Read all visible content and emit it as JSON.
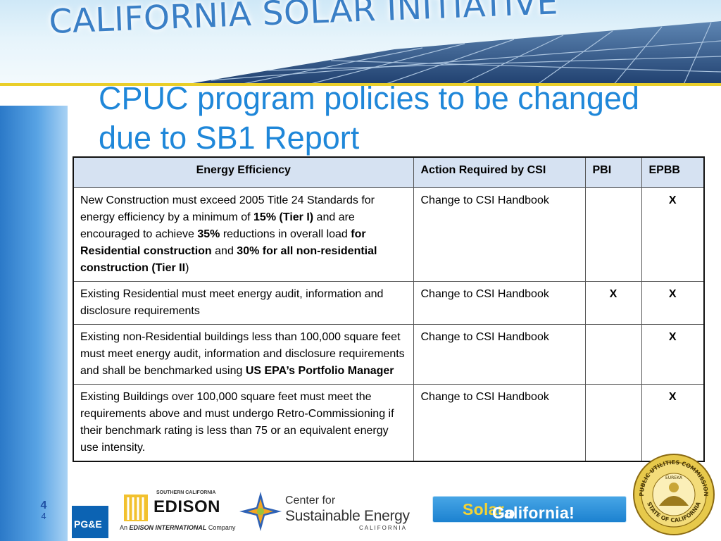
{
  "banner": {
    "title": "CALIFORNIA SOLAR INITIATIVE"
  },
  "slide": {
    "title_line1": "CPUC program policies to be changed",
    "title_line2": "due to SB1 Report"
  },
  "table": {
    "headers": [
      "Energy Efficiency",
      "Action Required by CSI",
      "PBI",
      "EPBB"
    ],
    "rows": [
      {
        "segments": [
          {
            "text": "New Construction must exceed 2005 Title 24 Standards for energy efficiency by a minimum of ",
            "bold": false
          },
          {
            "text": "15% (Tier I)",
            "bold": true
          },
          {
            "text": " and are encouraged to achieve ",
            "bold": false
          },
          {
            "text": "35%",
            "bold": true
          },
          {
            "text": " reductions in overall load ",
            "bold": false
          },
          {
            "text": "for Residential construction",
            "bold": true
          },
          {
            "text": " and ",
            "bold": false
          },
          {
            "text": "30% for all non-residential construction (Tier II",
            "bold": true
          },
          {
            "text": ")",
            "bold": false
          }
        ],
        "action": "Change to CSI Handbook",
        "pbi": "",
        "epbb": "X"
      },
      {
        "segments": [
          {
            "text": "Existing Residential must meet energy audit, information and disclosure requirements",
            "bold": false
          }
        ],
        "action": "Change to CSI Handbook",
        "pbi": "X",
        "epbb": "X"
      },
      {
        "segments": [
          {
            "text": "Existing non-Residential buildings less than 100,000 square feet must meet energy audit, information and disclosure requirements and shall be benchmarked using ",
            "bold": false
          },
          {
            "text": "US EPA’s Portfolio Manager",
            "bold": true
          }
        ],
        "action": "Change to CSI Handbook",
        "pbi": "",
        "epbb": "X"
      },
      {
        "segments": [
          {
            "text": "Existing Buildings over 100,000 square feet must meet the requirements above and must undergo Retro-Commissioning if their benchmark rating is less than 75 or an equivalent energy use intensity.",
            "bold": false
          }
        ],
        "action": "Change to CSI Handbook",
        "pbi": "",
        "epbb": "X"
      }
    ]
  },
  "footer": {
    "page_number": "4",
    "page_number_small": "4",
    "pge_label": "PG&E",
    "edison_top": "SOUTHERN CALIFORNIA",
    "edison_name": "EDISON",
    "edison_company_prefix": "An ",
    "edison_company_name": "EDISON INTERNATIONAL",
    "edison_company_suffix": " Company",
    "cse_line1": "Center for",
    "cse_line2": "Sustainable Energy",
    "cse_line3": "CALIFORNIA",
    "gosolar_go": "Go ",
    "gosolar_solar": "Solar",
    "gosolar_rest": " California!",
    "seal_top": "PUBLIC UTILITIES COMMISSION",
    "seal_bottom": "STATE OF CALIFORNIA",
    "seal_motto": "EUREKA"
  },
  "colors": {
    "title_blue": "#1f87d9",
    "banner_text": "#3a7fc6",
    "header_fill": "#d6e2f2",
    "gold": "#e9ce2a"
  }
}
